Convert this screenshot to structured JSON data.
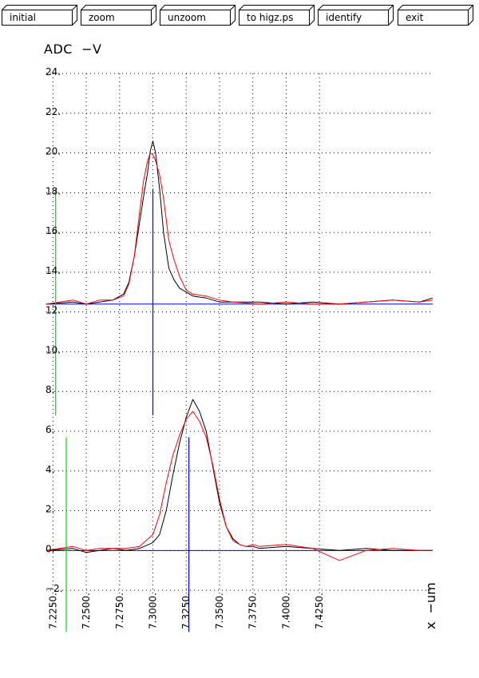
{
  "toolbar": {
    "buttons": [
      {
        "id": "initial",
        "label": "initial"
      },
      {
        "id": "zoom",
        "label": "zoom"
      },
      {
        "id": "unzoom",
        "label": "unzoom"
      },
      {
        "id": "higz",
        "label": "to higz.ps"
      },
      {
        "id": "identify",
        "label": "identify"
      },
      {
        "id": "exit",
        "label": "exit"
      }
    ]
  },
  "chart_data": {
    "type": "line",
    "title": "",
    "ylabel": "ADC  −V",
    "xlabel": "x  −um",
    "xlim": [
      7220,
      7510
    ],
    "ylim": [
      -2.8,
      24
    ],
    "x_ticks": [
      "7.2250.",
      "7.2500.",
      "7.2750.",
      "7.3000.",
      "7.3250.",
      "7.3500.",
      "7.3750.",
      "7.4000.",
      "7.4250."
    ],
    "x_tick_values": [
      7225,
      7250,
      7275,
      7300,
      7325,
      7350,
      7375,
      7400,
      7425
    ],
    "y_ticks": [
      "−2.",
      "0.",
      "2.",
      "4.",
      "6.",
      "8.",
      "10.",
      "12.",
      "14.",
      "16.",
      "18.",
      "20.",
      "22.",
      "24."
    ],
    "y_tick_values": [
      -2,
      0,
      2,
      4,
      6,
      8,
      10,
      12,
      14,
      16,
      18,
      20,
      22,
      24
    ],
    "grid": true,
    "colors": {
      "black": "#000000",
      "red": "#ff0000",
      "blue": "#0000ff",
      "green": "#00dd00"
    },
    "series": [
      {
        "color": "black",
        "x": [
          7220,
          7240,
          7250,
          7260,
          7270,
          7278,
          7282,
          7286,
          7290,
          7293,
          7296,
          7298,
          7300,
          7302,
          7305,
          7308,
          7312,
          7316,
          7320,
          7325,
          7330,
          7340,
          7350,
          7360,
          7380,
          7400,
          7420,
          7440,
          7460,
          7480,
          7500,
          7510
        ],
        "y": [
          12.4,
          12.5,
          12.4,
          12.5,
          12.6,
          12.9,
          13.5,
          14.8,
          16.5,
          17.8,
          19.0,
          20.1,
          20.6,
          20.0,
          18.2,
          16.0,
          14.2,
          13.6,
          13.2,
          13.0,
          12.8,
          12.7,
          12.5,
          12.5,
          12.5,
          12.4,
          12.5,
          12.4,
          12.5,
          12.6,
          12.5,
          12.7
        ]
      },
      {
        "color": "red",
        "x": [
          7220,
          7240,
          7250,
          7260,
          7270,
          7278,
          7282,
          7286,
          7290,
          7293,
          7296,
          7298,
          7300,
          7302,
          7305,
          7308,
          7312,
          7316,
          7320,
          7325,
          7330,
          7340,
          7350,
          7360,
          7380,
          7400,
          7420,
          7440,
          7460,
          7480,
          7500,
          7510
        ],
        "y": [
          12.4,
          12.6,
          12.4,
          12.6,
          12.6,
          12.8,
          13.4,
          14.8,
          17.0,
          18.6,
          19.6,
          20.0,
          19.9,
          19.6,
          18.9,
          17.7,
          15.6,
          14.6,
          13.8,
          13.1,
          12.9,
          12.8,
          12.6,
          12.5,
          12.4,
          12.5,
          12.4,
          12.4,
          12.5,
          12.6,
          12.5,
          12.6
        ]
      },
      {
        "color": "black",
        "x": [
          7220,
          7240,
          7250,
          7260,
          7270,
          7280,
          7290,
          7300,
          7305,
          7310,
          7315,
          7320,
          7325,
          7330,
          7335,
          7340,
          7345,
          7350,
          7355,
          7360,
          7365,
          7370,
          7375,
          7380,
          7400,
          7420,
          7440,
          7460,
          7480,
          7500,
          7510
        ],
        "y": [
          0.0,
          0.1,
          -0.1,
          0.0,
          0.1,
          0.0,
          0.1,
          0.4,
          0.8,
          2.0,
          3.8,
          5.4,
          6.7,
          7.6,
          7.0,
          6.0,
          4.2,
          2.4,
          1.2,
          0.6,
          0.3,
          0.2,
          0.2,
          0.1,
          0.2,
          0.1,
          0.0,
          0.1,
          0.0,
          0.0,
          0.0
        ]
      },
      {
        "color": "red",
        "x": [
          7220,
          7240,
          7250,
          7260,
          7270,
          7280,
          7290,
          7300,
          7305,
          7310,
          7315,
          7320,
          7325,
          7330,
          7335,
          7340,
          7345,
          7350,
          7355,
          7360,
          7365,
          7370,
          7375,
          7380,
          7400,
          7420,
          7440,
          7460,
          7480,
          7500,
          7510
        ],
        "y": [
          0.0,
          0.2,
          0.0,
          0.1,
          0.1,
          0.1,
          0.2,
          0.8,
          1.8,
          3.4,
          4.8,
          5.8,
          6.6,
          7.0,
          6.5,
          5.7,
          4.3,
          2.6,
          1.2,
          0.5,
          0.3,
          0.2,
          0.3,
          0.2,
          0.3,
          0.1,
          -0.5,
          0.0,
          0.1,
          0.0,
          0.0
        ]
      }
    ],
    "baselines": [
      {
        "color": "blue",
        "y": 12.4
      },
      {
        "color": "blue",
        "y": 0.0
      }
    ],
    "markers": [
      {
        "color": "green",
        "x": 7227,
        "y0": 6.8,
        "y1": 18.2
      },
      {
        "color": "blue",
        "x": 7300,
        "y0": 6.8,
        "y1": 18.2
      },
      {
        "color": "green",
        "x": 7235,
        "y0": -4.1,
        "y1": 5.7
      },
      {
        "color": "blue",
        "x": 7327,
        "y0": -4.1,
        "y1": 5.7
      }
    ]
  }
}
